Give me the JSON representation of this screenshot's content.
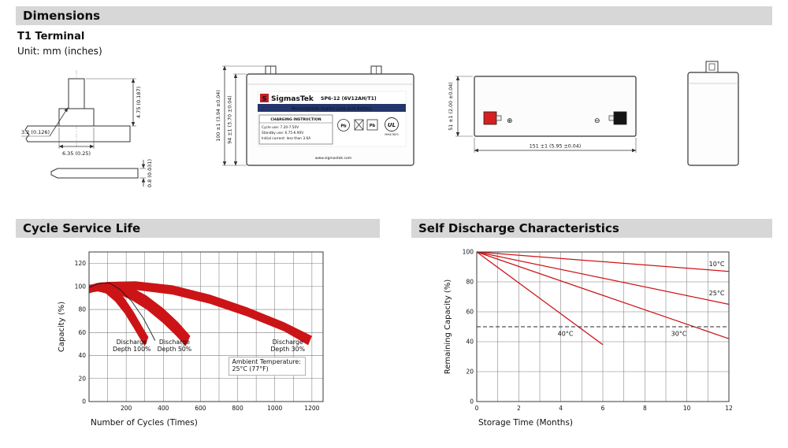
{
  "sections": {
    "dimensions": "Dimensions"
  },
  "dimensions_panel": {
    "terminal_type": "T1 Terminal",
    "unit_note": "Unit: mm (inches)",
    "terminal_detail": {
      "blade_width": "3.2 (0.126)",
      "base_width": "6.35 (0.25)",
      "blade_height": "4.75 (0.187)",
      "blade_thickness": "0.8 (0.031)"
    },
    "front_view": {
      "overall_height": "100 ±1 (3.94 ±0.04)",
      "case_height": "94 ±1 (3.70 ±0.04)",
      "logo_mark": "S",
      "brand": "SigmasTek",
      "model": "SP6-12 (6V12AH/T1)",
      "battery_type": "Rechargeable Sealed Lead-Acid Battery",
      "charging_title": "CHARGING INSTRUCTION",
      "charging_lines": [
        "Cycle use: 7.20-7.50V",
        "Standby use: 6.75-6.90V",
        "Initial current: less than 3.6A"
      ],
      "pb_label": "Pb",
      "ul_label": "UL",
      "ul_number": "MH47829",
      "website": "www.sigmastek.com"
    },
    "top_view": {
      "width": "51 ±1 (2.00 ±0.04)",
      "length": "151 ±1 (5.95 ±0.04)",
      "plus_symbol": "⊕",
      "minus_symbol": "⊖"
    }
  },
  "colors": {
    "header_bar": "#d7d7d7",
    "accent_red": "#cc1417",
    "terminal_red": "#d42020",
    "terminal_black": "#151515",
    "label_navy": "#24356b"
  },
  "chart_data": [
    {
      "type": "area",
      "title": "Cycle Service Life",
      "xlabel": "Number of Cycles (Times)",
      "ylabel": "Capacity (%)",
      "xlim": [
        0,
        1260
      ],
      "ylim": [
        0,
        130
      ],
      "xticks": [
        200,
        400,
        600,
        800,
        1000,
        1200
      ],
      "yticks": [
        0,
        20,
        40,
        60,
        80,
        100,
        120
      ],
      "x_grid_step": 100,
      "y_grid_step": 20,
      "grid": true,
      "legend_position": "none",
      "band_color": "#cc1417",
      "bands": [
        {
          "name": "Discharge Depth 100%",
          "upper": [
            [
              0,
              100.5
            ],
            [
              40,
              103
            ],
            [
              90,
              103.5
            ],
            [
              140,
              99
            ],
            [
              190,
              90
            ],
            [
              240,
              78
            ],
            [
              290,
              64
            ],
            [
              320,
              56
            ]
          ],
          "lower": [
            [
              0,
              94
            ],
            [
              40,
              96
            ],
            [
              90,
              94
            ],
            [
              140,
              87
            ],
            [
              190,
              77
            ],
            [
              240,
              64
            ],
            [
              280,
              53
            ],
            [
              300,
              48
            ]
          ]
        },
        {
          "name": "Discharge Depth 50%",
          "upper": [
            [
              0,
              101
            ],
            [
              60,
              103.5
            ],
            [
              130,
              104
            ],
            [
              220,
              100
            ],
            [
              310,
              92
            ],
            [
              400,
              81
            ],
            [
              480,
              69
            ],
            [
              545,
              57
            ]
          ],
          "lower": [
            [
              0,
              94.5
            ],
            [
              60,
              96
            ],
            [
              130,
              95
            ],
            [
              220,
              89
            ],
            [
              310,
              80
            ],
            [
              400,
              68
            ],
            [
              470,
              57
            ],
            [
              520,
              48
            ]
          ]
        },
        {
          "name": "Discharge Depth 30%",
          "upper": [
            [
              0,
              101.5
            ],
            [
              100,
              104
            ],
            [
              250,
              104.5
            ],
            [
              450,
              101
            ],
            [
              650,
              93
            ],
            [
              850,
              82
            ],
            [
              1050,
              69
            ],
            [
              1200,
              57
            ]
          ],
          "lower": [
            [
              0,
              95
            ],
            [
              100,
              97
            ],
            [
              250,
              97
            ],
            [
              450,
              93
            ],
            [
              650,
              85
            ],
            [
              850,
              74
            ],
            [
              1050,
              61
            ],
            [
              1180,
              49
            ]
          ]
        }
      ],
      "outline": [
        [
          0,
          99
        ],
        [
          50,
          102.5
        ],
        [
          110,
          103
        ],
        [
          170,
          97
        ],
        [
          230,
          87
        ],
        [
          290,
          73
        ],
        [
          330,
          61
        ],
        [
          355,
          53
        ]
      ],
      "annotations": [
        {
          "lines": [
            "Discharge",
            "Depth 100%"
          ],
          "x": 230,
          "y": 50,
          "align": "center"
        },
        {
          "lines": [
            "Discharge",
            "Depth 50%"
          ],
          "x": 460,
          "y": 50,
          "align": "center"
        },
        {
          "lines": [
            "Discharge",
            "Depth 30%"
          ],
          "x": 1070,
          "y": 50,
          "align": "center"
        },
        {
          "lines": [
            "Ambient Temperature:",
            "25°C (77°F)"
          ],
          "x": 770,
          "y": 33,
          "align": "left",
          "box": true
        }
      ]
    },
    {
      "type": "line",
      "title": "Self Discharge Characteristics",
      "xlabel": "Storage Time (Months)",
      "ylabel": "Remaining Capacity (%)",
      "xlim": [
        0,
        12
      ],
      "ylim": [
        0,
        100
      ],
      "xticks": [
        0,
        2,
        4,
        6,
        8,
        10,
        12
      ],
      "yticks": [
        0,
        20,
        40,
        60,
        80,
        100
      ],
      "x_grid_step": 1,
      "y_grid_step": 20,
      "grid": true,
      "legend_position": "inline-labels",
      "line_color": "#cc1417",
      "series": [
        {
          "name": "10°C",
          "points": [
            [
              0,
              100
            ],
            [
              12,
              87
            ]
          ],
          "label_pos": [
            11.05,
            90.5
          ]
        },
        {
          "name": "25°C",
          "points": [
            [
              0,
              100
            ],
            [
              12,
              65
            ]
          ],
          "label_pos": [
            11.05,
            71
          ]
        },
        {
          "name": "30°C",
          "points": [
            [
              0,
              100
            ],
            [
              12,
              42
            ]
          ],
          "label_pos": [
            9.25,
            44
          ]
        },
        {
          "name": "40°C",
          "points": [
            [
              0,
              100
            ],
            [
              6,
              38
            ]
          ],
          "label_pos": [
            3.85,
            44
          ]
        }
      ],
      "refline": {
        "y": 50
      }
    }
  ]
}
